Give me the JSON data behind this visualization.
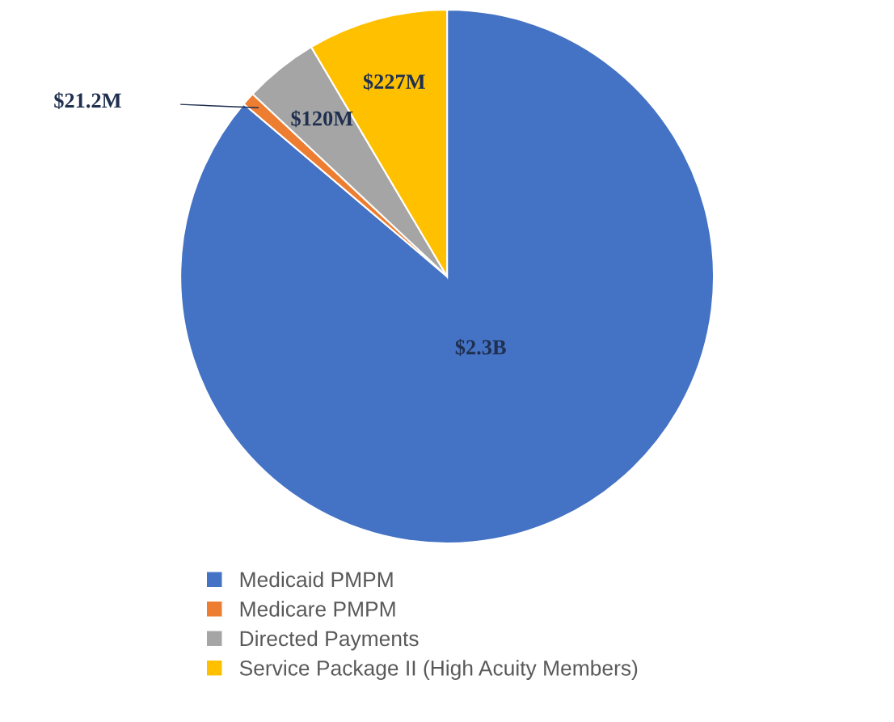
{
  "chart_data": {
    "type": "pie",
    "categories": [
      "Medicaid PMPM",
      "Medicare PMPM",
      "Directed Payments",
      "Service Package II (High Acuity Members)"
    ],
    "values": [
      2300000000,
      21200000,
      120000000,
      227000000
    ],
    "value_labels": [
      "$2.3B",
      "$21.2M",
      "$120M",
      "$227M"
    ],
    "colors": [
      "#4472c4",
      "#ed7d31",
      "#a5a5a5",
      "#ffc000"
    ],
    "legend": "bottom"
  }
}
